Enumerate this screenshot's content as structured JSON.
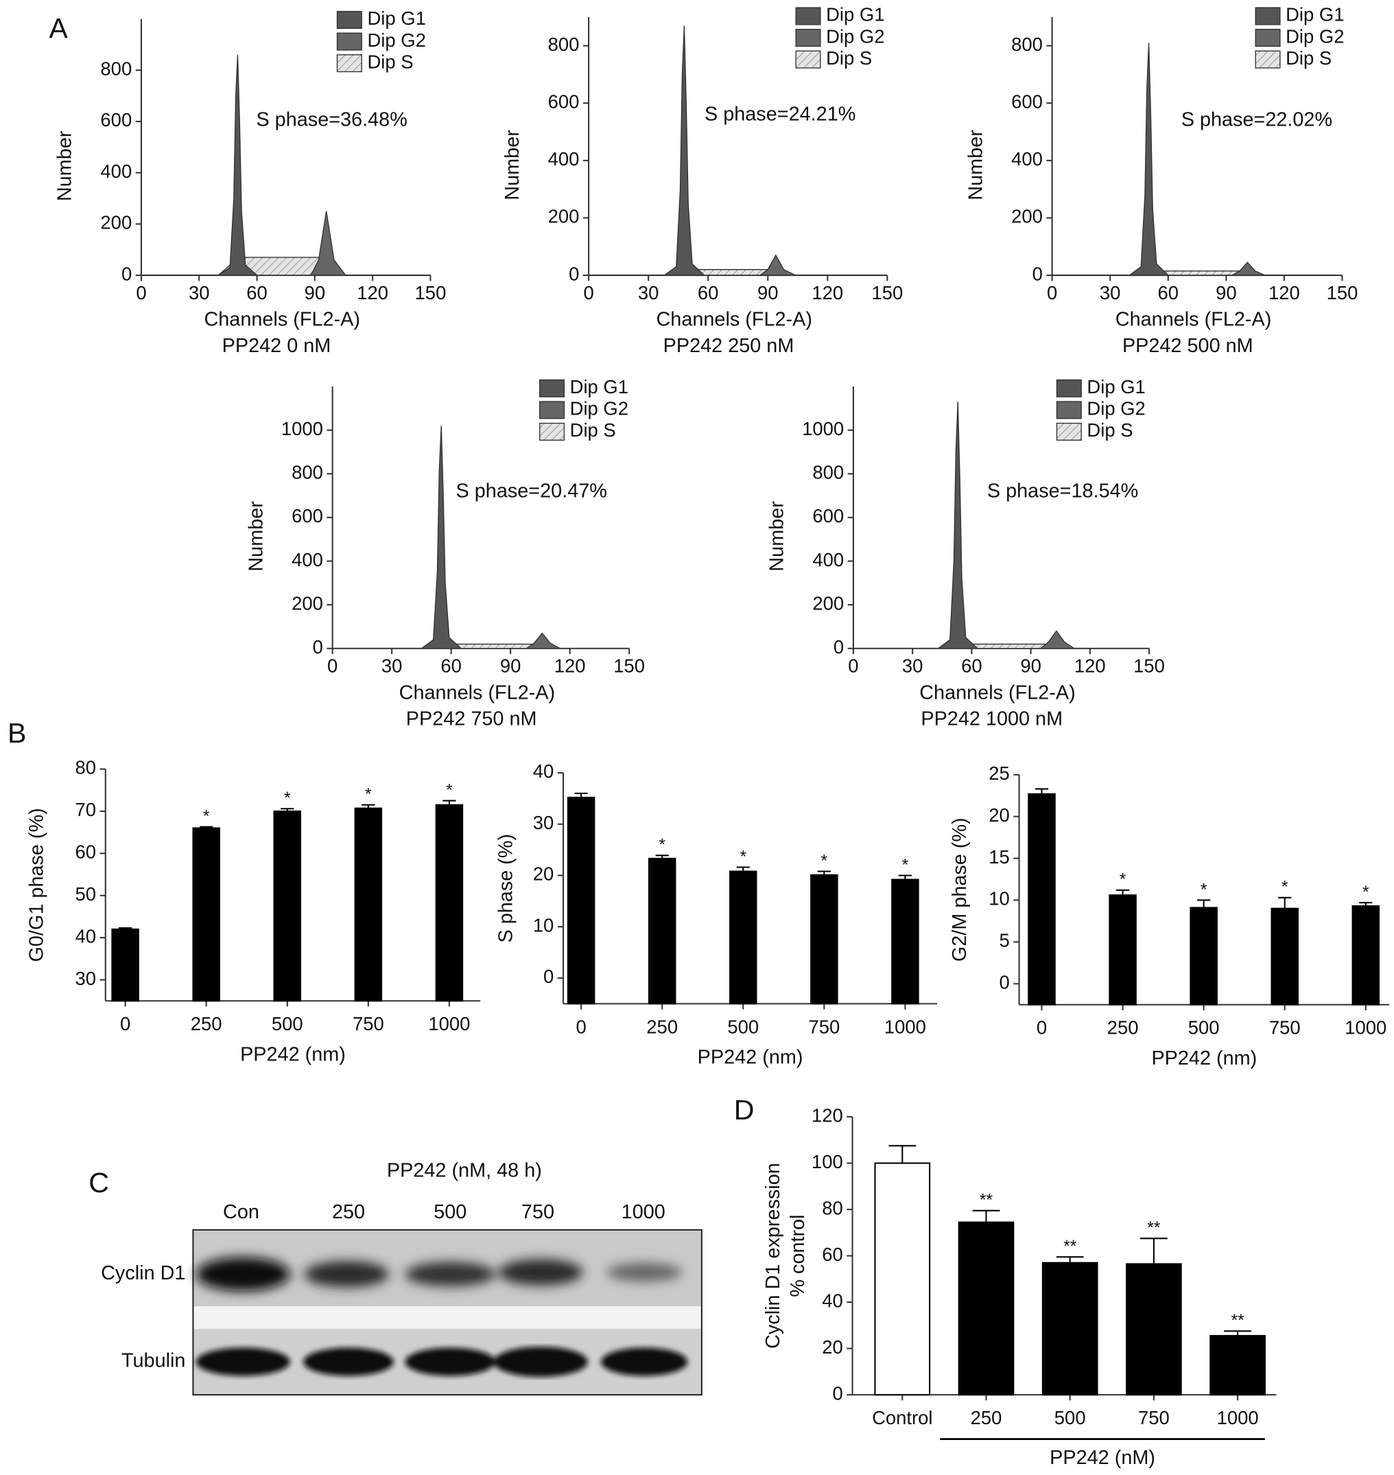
{
  "chart_data": [
    {
      "type": "area",
      "panel_label": "A",
      "title": "PP242 0 nM",
      "annotation": "S phase=36.48%",
      "xlabel": "Channels (FL2-A)",
      "ylabel": "Number",
      "x": [
        40,
        46,
        48,
        49,
        50,
        51,
        52,
        54,
        60,
        88,
        92,
        96,
        100,
        106
      ],
      "xlim": [
        0,
        150
      ],
      "xticks": [
        0,
        30,
        60,
        90,
        120,
        150
      ],
      "ylim": [
        0,
        1000
      ],
      "yticks": [
        0,
        200,
        400,
        600,
        800
      ],
      "series": [
        {
          "name": "Dip G1",
          "color": "#555555",
          "values": [
            0,
            30,
            300,
            700,
            860,
            600,
            250,
            40,
            0,
            0,
            0,
            0,
            0,
            0
          ]
        },
        {
          "name": "Dip G2",
          "color": "#666666",
          "values": [
            0,
            0,
            0,
            0,
            0,
            0,
            0,
            0,
            0,
            0,
            60,
            250,
            60,
            0
          ]
        },
        {
          "name": "Dip S",
          "color": "#e4e4e4",
          "fill_pattern": "hatch",
          "values": [
            0,
            40,
            70,
            70,
            70,
            70,
            70,
            70,
            70,
            70,
            70,
            70,
            40,
            0
          ]
        }
      ]
    },
    {
      "type": "area",
      "title": "PP242 250 nM",
      "annotation": "S phase=24.21%",
      "xlabel": "Channels (FL2-A)",
      "ylabel": "Number",
      "x": [
        38,
        44,
        46,
        47,
        48,
        49,
        50,
        52,
        58,
        86,
        90,
        94,
        98,
        104
      ],
      "xlim": [
        0,
        150
      ],
      "xticks": [
        0,
        30,
        60,
        90,
        120,
        150
      ],
      "ylim": [
        0,
        900
      ],
      "yticks": [
        0,
        200,
        400,
        600,
        800
      ],
      "series": [
        {
          "name": "Dip G1",
          "color": "#555555",
          "values": [
            0,
            30,
            300,
            700,
            870,
            600,
            250,
            40,
            0,
            0,
            0,
            0,
            0,
            0
          ]
        },
        {
          "name": "Dip G2",
          "color": "#666666",
          "values": [
            0,
            0,
            0,
            0,
            0,
            0,
            0,
            0,
            0,
            0,
            20,
            70,
            20,
            0
          ]
        },
        {
          "name": "Dip S",
          "color": "#e4e4e4",
          "fill_pattern": "hatch",
          "values": [
            0,
            15,
            20,
            20,
            20,
            20,
            20,
            20,
            20,
            20,
            20,
            20,
            10,
            0
          ]
        }
      ]
    },
    {
      "type": "area",
      "title": "PP242 500 nM",
      "annotation": "S phase=22.02%",
      "xlabel": "Channels (FL2-A)",
      "ylabel": "Number",
      "x": [
        40,
        46,
        48,
        49,
        50,
        51,
        52,
        54,
        60,
        93,
        97,
        101,
        105,
        110
      ],
      "xlim": [
        0,
        150
      ],
      "xticks": [
        0,
        30,
        60,
        90,
        120,
        150
      ],
      "ylim": [
        0,
        900
      ],
      "yticks": [
        0,
        200,
        400,
        600,
        800
      ],
      "series": [
        {
          "name": "Dip G1",
          "color": "#555555",
          "values": [
            0,
            30,
            280,
            650,
            810,
            560,
            230,
            40,
            0,
            0,
            0,
            0,
            0,
            0
          ]
        },
        {
          "name": "Dip G2",
          "color": "#666666",
          "values": [
            0,
            0,
            0,
            0,
            0,
            0,
            0,
            0,
            0,
            0,
            15,
            45,
            15,
            0
          ]
        },
        {
          "name": "Dip S",
          "color": "#e4e4e4",
          "fill_pattern": "hatch",
          "values": [
            0,
            12,
            15,
            15,
            15,
            15,
            15,
            15,
            15,
            15,
            15,
            15,
            8,
            0
          ]
        }
      ]
    },
    {
      "type": "area",
      "title": "PP242 750 nM",
      "annotation": "S phase=20.47%",
      "xlabel": "Channels (FL2-A)",
      "ylabel": "Number",
      "x": [
        45,
        51,
        53,
        54,
        55,
        56,
        57,
        59,
        65,
        98,
        102,
        106,
        110,
        115
      ],
      "xlim": [
        0,
        150
      ],
      "xticks": [
        0,
        30,
        60,
        90,
        120,
        150
      ],
      "ylim": [
        0,
        1200
      ],
      "yticks": [
        0,
        200,
        400,
        600,
        800,
        1000
      ],
      "series": [
        {
          "name": "Dip G1",
          "color": "#555555",
          "values": [
            0,
            40,
            350,
            820,
            1020,
            700,
            300,
            50,
            0,
            0,
            0,
            0,
            0,
            0
          ]
        },
        {
          "name": "Dip G2",
          "color": "#666666",
          "values": [
            0,
            0,
            0,
            0,
            0,
            0,
            0,
            0,
            0,
            0,
            25,
            70,
            25,
            0
          ]
        },
        {
          "name": "Dip S",
          "color": "#e4e4e4",
          "fill_pattern": "hatch",
          "values": [
            0,
            15,
            20,
            20,
            20,
            20,
            20,
            20,
            20,
            20,
            20,
            20,
            10,
            0
          ]
        }
      ]
    },
    {
      "type": "area",
      "title": "PP242 1000 nM",
      "annotation": "S phase=18.54%",
      "xlabel": "Channels (FL2-A)",
      "ylabel": "Number",
      "x": [
        43,
        49,
        51,
        52,
        53,
        54,
        55,
        57,
        63,
        95,
        99,
        103,
        107,
        112
      ],
      "xlim": [
        0,
        150
      ],
      "xticks": [
        0,
        30,
        60,
        90,
        120,
        150
      ],
      "ylim": [
        0,
        1200
      ],
      "yticks": [
        0,
        200,
        400,
        600,
        800,
        1000
      ],
      "series": [
        {
          "name": "Dip G1",
          "color": "#555555",
          "values": [
            0,
            40,
            400,
            900,
            1130,
            780,
            320,
            50,
            0,
            0,
            0,
            0,
            0,
            0
          ]
        },
        {
          "name": "Dip G2",
          "color": "#666666",
          "values": [
            0,
            0,
            0,
            0,
            0,
            0,
            0,
            0,
            0,
            0,
            30,
            80,
            30,
            0
          ]
        },
        {
          "name": "Dip S",
          "color": "#e4e4e4",
          "fill_pattern": "hatch",
          "values": [
            0,
            15,
            20,
            20,
            20,
            20,
            20,
            20,
            20,
            20,
            20,
            20,
            10,
            0
          ]
        }
      ]
    },
    {
      "type": "bar",
      "panel_label": "B",
      "xlabel": "PP242 (nm)",
      "ylabel": "G0/G1 phase (%)",
      "categories": [
        "0",
        "250",
        "500",
        "750",
        "1000"
      ],
      "values": [
        42,
        66,
        70,
        70.7,
        71.5
      ],
      "errors": [
        0.3,
        0.3,
        0.6,
        0.8,
        1.0
      ],
      "significance": [
        null,
        "*",
        "*",
        "*",
        "*"
      ],
      "color": "#000000",
      "ylim": [
        25,
        80
      ],
      "yticks": [
        30,
        40,
        50,
        60,
        70,
        80
      ]
    },
    {
      "type": "bar",
      "xlabel": "PP242 (nm)",
      "ylabel": "S phase (%)",
      "categories": [
        "0",
        "250",
        "500",
        "750",
        "1000"
      ],
      "values": [
        35.2,
        23.3,
        20.8,
        20.1,
        19.2
      ],
      "errors": [
        0.8,
        0.6,
        0.8,
        0.7,
        0.8
      ],
      "significance": [
        null,
        "*",
        "*",
        "*",
        "*"
      ],
      "color": "#000000",
      "ylim": [
        -5,
        40
      ],
      "yticks": [
        0,
        10,
        20,
        30,
        40
      ]
    },
    {
      "type": "bar",
      "xlabel": "PP242 (nm)",
      "ylabel": "G2/M phase (%)",
      "categories": [
        "0",
        "250",
        "500",
        "750",
        "1000"
      ],
      "values": [
        22.7,
        10.6,
        9.1,
        9.0,
        9.3
      ],
      "errors": [
        0.6,
        0.6,
        0.9,
        1.3,
        0.4
      ],
      "significance": [
        null,
        "*",
        "*",
        "*",
        "*"
      ],
      "color": "#000000",
      "ylim": [
        -2.5,
        25
      ],
      "yticks": [
        0,
        5,
        10,
        15,
        20,
        25
      ]
    },
    {
      "type": "bar",
      "panel_label": "D",
      "ylabel": [
        "Cyclin D1 expression",
        "% control"
      ],
      "group_label": "PP242 (nM)",
      "categories": [
        "Control",
        "250",
        "500",
        "750",
        "1000"
      ],
      "values": [
        100,
        74.5,
        57,
        56.5,
        25.5
      ],
      "errors": [
        7.5,
        5,
        2.5,
        11,
        2
      ],
      "significance": [
        null,
        "**",
        "**",
        "**",
        "**"
      ],
      "colors": [
        "#ffffff",
        "#000000",
        "#000000",
        "#000000",
        "#000000"
      ],
      "ylim": [
        0,
        120
      ],
      "yticks": [
        0,
        20,
        40,
        60,
        80,
        100,
        120
      ]
    }
  ],
  "blot": {
    "panel_label": "C",
    "title": "PP242 (nM, 48 h)",
    "lanes": [
      "Con",
      "250",
      "500",
      "750",
      "1000"
    ],
    "rows": [
      "Cyclin D1",
      "Tubulin"
    ]
  }
}
